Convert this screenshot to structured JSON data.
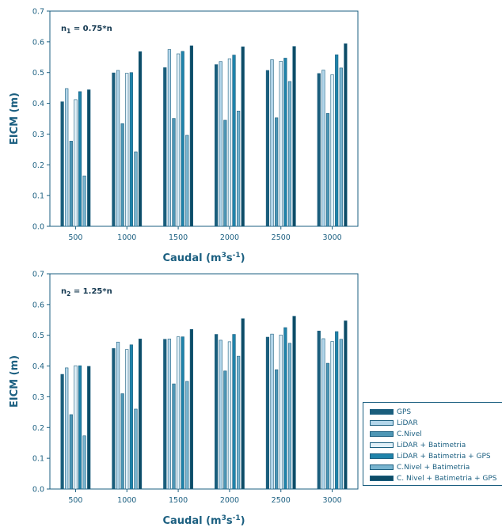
{
  "colors": [
    "#1a5e7c",
    "#b3d6ea",
    "#4d96b5",
    "#e1f0f8",
    "#1f83aa",
    "#78b4cf",
    "#0d4c66"
  ],
  "legend": [
    "GPS",
    "LiDAR",
    "C.Nivel",
    "LiDAR + Batimetria",
    "LiDAR + Batimetria + GPS",
    "C.Nivel + Batimetria",
    "C. Nivel + Batimetria + GPS"
  ],
  "chart_data": [
    {
      "type": "bar",
      "annotation": "n1 = 0.75*n",
      "annotation_main": "n",
      "annotation_sub": "1",
      "annotation_rest": " = 0.75*n",
      "ylabel": "EICM (m)",
      "xlabel_main": "Caudal (m",
      "xlabel_sup1": "3",
      "xlabel_mid": "s",
      "xlabel_sup2": "-1",
      "xlabel_end": ")",
      "categories": [
        "500",
        "1000",
        "1500",
        "2000",
        "2500",
        "3000"
      ],
      "ylim": [
        0,
        0.7
      ],
      "yticks": [
        "0.0",
        "0.1",
        "0.2",
        "0.3",
        "0.4",
        "0.5",
        "0.6",
        "0.7"
      ],
      "series": [
        {
          "name": "GPS",
          "values": [
            0.405,
            0.499,
            0.516,
            0.526,
            0.507,
            0.497
          ]
        },
        {
          "name": "LiDAR",
          "values": [
            0.448,
            0.507,
            0.575,
            0.536,
            0.542,
            0.508
          ]
        },
        {
          "name": "C.Nivel",
          "values": [
            0.277,
            0.334,
            0.351,
            0.345,
            0.353,
            0.367
          ]
        },
        {
          "name": "LiDAR + Batimetria",
          "values": [
            0.412,
            0.498,
            0.561,
            0.545,
            0.537,
            0.493
          ]
        },
        {
          "name": "LiDAR + Batimetria + GPS",
          "values": [
            0.438,
            0.5,
            0.569,
            0.557,
            0.547,
            0.558
          ]
        },
        {
          "name": "C.Nivel + Batimetria",
          "values": [
            0.164,
            0.242,
            0.296,
            0.375,
            0.471,
            0.515
          ]
        },
        {
          "name": "C. Nivel + Batimetria + GPS",
          "values": [
            0.444,
            0.568,
            0.587,
            0.584,
            0.585,
            0.594
          ]
        }
      ]
    },
    {
      "type": "bar",
      "annotation": "n2 = 1.25*n",
      "annotation_main": "n",
      "annotation_sub": "2",
      "annotation_rest": " = 1.25*n",
      "ylabel": "EICM (m)",
      "xlabel_main": "Caudal (m",
      "xlabel_sup1": "3",
      "xlabel_mid": "s",
      "xlabel_sup2": "-1",
      "xlabel_end": ")",
      "categories": [
        "500",
        "1000",
        "1500",
        "2000",
        "2500",
        "3000"
      ],
      "ylim": [
        0,
        0.7
      ],
      "yticks": [
        "0.0",
        "0.1",
        "0.2",
        "0.3",
        "0.4",
        "0.5",
        "0.6",
        "0.7"
      ],
      "series": [
        {
          "name": "GPS",
          "values": [
            0.373,
            0.457,
            0.487,
            0.503,
            0.494,
            0.514
          ]
        },
        {
          "name": "LiDAR",
          "values": [
            0.394,
            0.478,
            0.488,
            0.484,
            0.504,
            0.489
          ]
        },
        {
          "name": "C.Nivel",
          "values": [
            0.242,
            0.31,
            0.342,
            0.384,
            0.388,
            0.409
          ]
        },
        {
          "name": "LiDAR + Batimetria",
          "values": [
            0.401,
            0.454,
            0.495,
            0.479,
            0.501,
            0.48
          ]
        },
        {
          "name": "LiDAR + Batimetria + GPS",
          "values": [
            0.401,
            0.469,
            0.495,
            0.503,
            0.525,
            0.512
          ]
        },
        {
          "name": "C.Nivel + Batimetria",
          "values": [
            0.173,
            0.26,
            0.35,
            0.432,
            0.474,
            0.487
          ]
        },
        {
          "name": "C. Nivel + Batimetria + GPS",
          "values": [
            0.399,
            0.488,
            0.519,
            0.554,
            0.562,
            0.547
          ]
        }
      ]
    }
  ]
}
